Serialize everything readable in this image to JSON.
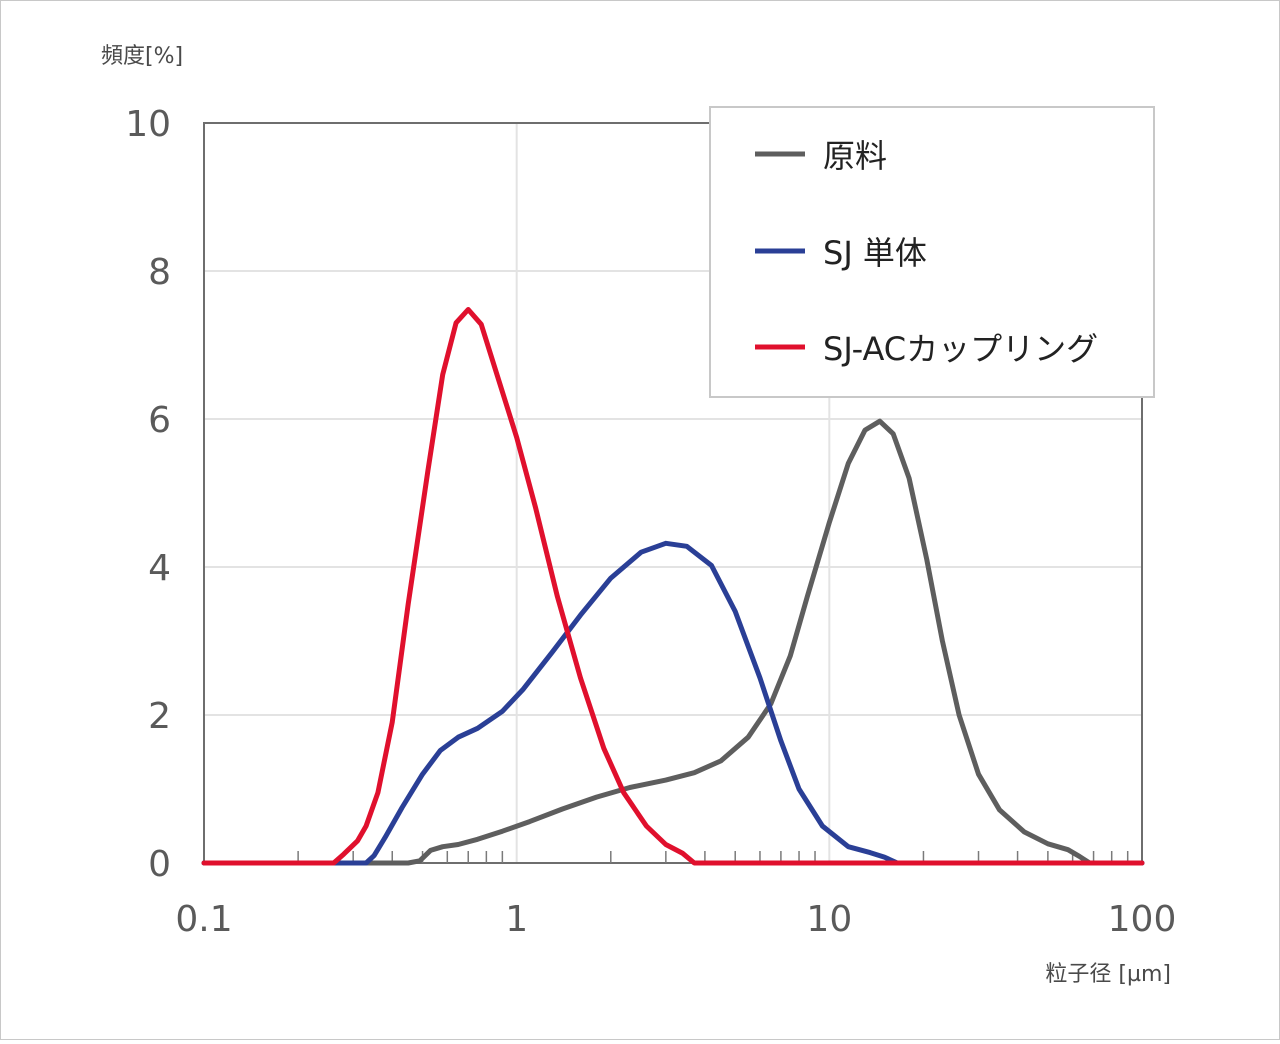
{
  "chart_data": {
    "type": "line",
    "x_scale": "log",
    "xlabel": "粒子径 [µm]",
    "ylabel": "頻度[%]",
    "xlim": [
      0.1,
      100
    ],
    "ylim": [
      0,
      10
    ],
    "x_ticks": [
      {
        "value": 0.1,
        "label": "0.1"
      },
      {
        "value": 1,
        "label": "1"
      },
      {
        "value": 10,
        "label": "10"
      },
      {
        "value": 100,
        "label": "100"
      }
    ],
    "y_ticks": [
      {
        "value": 0,
        "label": "0"
      },
      {
        "value": 2,
        "label": "2"
      },
      {
        "value": 4,
        "label": "4"
      },
      {
        "value": 6,
        "label": "6"
      },
      {
        "value": 8,
        "label": "8"
      },
      {
        "value": 10,
        "label": "10"
      }
    ],
    "grid": true,
    "legend_position": "top-right",
    "series": [
      {
        "name": "原料",
        "color": "#5e5e5e",
        "points": [
          [
            0.1,
            0
          ],
          [
            0.45,
            0
          ],
          [
            0.49,
            0.03
          ],
          [
            0.53,
            0.17
          ],
          [
            0.58,
            0.22
          ],
          [
            0.65,
            0.25
          ],
          [
            0.75,
            0.32
          ],
          [
            0.9,
            0.43
          ],
          [
            1.1,
            0.56
          ],
          [
            1.4,
            0.73
          ],
          [
            1.8,
            0.89
          ],
          [
            2.3,
            1.02
          ],
          [
            3,
            1.12
          ],
          [
            3.7,
            1.22
          ],
          [
            4.5,
            1.38
          ],
          [
            5.5,
            1.7
          ],
          [
            6.5,
            2.15
          ],
          [
            7.5,
            2.8
          ],
          [
            8.5,
            3.6
          ],
          [
            10,
            4.6
          ],
          [
            11.5,
            5.4
          ],
          [
            13,
            5.85
          ],
          [
            14.5,
            5.97
          ],
          [
            16,
            5.8
          ],
          [
            18,
            5.2
          ],
          [
            20.5,
            4.1
          ],
          [
            23,
            3.0
          ],
          [
            26,
            2.0
          ],
          [
            30,
            1.2
          ],
          [
            35,
            0.72
          ],
          [
            42,
            0.42
          ],
          [
            50,
            0.26
          ],
          [
            58,
            0.18
          ],
          [
            63,
            0.09
          ],
          [
            68,
            0
          ],
          [
            100,
            0
          ]
        ]
      },
      {
        "name": "SJ 単体",
        "color": "#2a3f96",
        "points": [
          [
            0.1,
            0
          ],
          [
            0.33,
            0
          ],
          [
            0.35,
            0.1
          ],
          [
            0.38,
            0.35
          ],
          [
            0.43,
            0.75
          ],
          [
            0.5,
            1.2
          ],
          [
            0.57,
            1.52
          ],
          [
            0.65,
            1.7
          ],
          [
            0.75,
            1.82
          ],
          [
            0.9,
            2.05
          ],
          [
            1.05,
            2.35
          ],
          [
            1.3,
            2.85
          ],
          [
            1.6,
            3.35
          ],
          [
            2.0,
            3.85
          ],
          [
            2.5,
            4.2
          ],
          [
            3.0,
            4.32
          ],
          [
            3.5,
            4.28
          ],
          [
            4.2,
            4.02
          ],
          [
            5.0,
            3.4
          ],
          [
            6.0,
            2.5
          ],
          [
            7.0,
            1.65
          ],
          [
            8.0,
            1.0
          ],
          [
            9.5,
            0.5
          ],
          [
            11.5,
            0.22
          ],
          [
            13.5,
            0.14
          ],
          [
            15,
            0.08
          ],
          [
            16.5,
            0
          ],
          [
            100,
            0
          ]
        ]
      },
      {
        "name": "SJ-ACカップリング",
        "color": "#e0102d",
        "points": [
          [
            0.1,
            0
          ],
          [
            0.26,
            0
          ],
          [
            0.28,
            0.12
          ],
          [
            0.31,
            0.3
          ],
          [
            0.33,
            0.5
          ],
          [
            0.36,
            0.95
          ],
          [
            0.4,
            1.9
          ],
          [
            0.45,
            3.5
          ],
          [
            0.52,
            5.3
          ],
          [
            0.58,
            6.6
          ],
          [
            0.64,
            7.3
          ],
          [
            0.7,
            7.48
          ],
          [
            0.77,
            7.28
          ],
          [
            0.88,
            6.5
          ],
          [
            1.0,
            5.75
          ],
          [
            1.15,
            4.8
          ],
          [
            1.35,
            3.6
          ],
          [
            1.6,
            2.5
          ],
          [
            1.9,
            1.55
          ],
          [
            2.2,
            0.95
          ],
          [
            2.6,
            0.5
          ],
          [
            3.0,
            0.25
          ],
          [
            3.4,
            0.13
          ],
          [
            3.7,
            0
          ],
          [
            100,
            0
          ]
        ]
      }
    ]
  }
}
